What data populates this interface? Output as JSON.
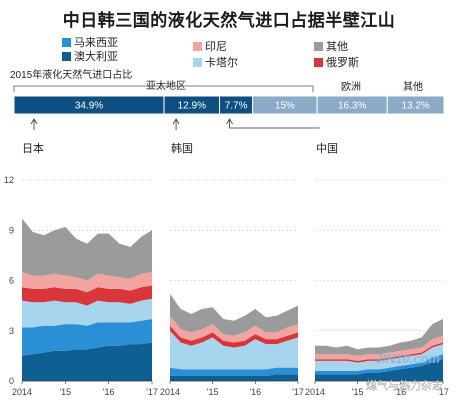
{
  "title": "中日韩三国的液化天然气进口占据半壁江山",
  "legend": [
    {
      "label": "马来西亚",
      "color": "#2b8fd6"
    },
    {
      "label": "印尼",
      "color": "#f2a5a0"
    },
    {
      "label": "其他",
      "color": "#9b9b9b"
    },
    {
      "label": "澳大利亚",
      "color": "#0d5f94"
    },
    {
      "label": "卡塔尔",
      "color": "#a7d5ee"
    },
    {
      "label": "俄罗斯",
      "color": "#d9363c"
    }
  ],
  "share_bar": {
    "caption": "2015年液化天然气进口占比",
    "group_labels": {
      "asia": "亚太地区",
      "europe": "欧洲",
      "other": "其他"
    },
    "segments": [
      {
        "label": "34.9%",
        "value": 34.9,
        "color": "#0d4f80"
      },
      {
        "label": "12.9%",
        "value": 12.9,
        "color": "#0d4f80"
      },
      {
        "label": "7.7%",
        "value": 7.7,
        "color": "#0d4f80"
      },
      {
        "label": "15%",
        "value": 15,
        "color": "#8aaac6"
      },
      {
        "label": "16.3%",
        "value": 16.3,
        "color": "#8aaac6"
      },
      {
        "label": "13.2%",
        "value": 13.2,
        "color": "#8aaac6"
      }
    ],
    "country_labels": [
      "日本",
      "韩国",
      "中国"
    ]
  },
  "chart_data": {
    "type": "area",
    "stacked": true,
    "ylim": [
      0,
      12
    ],
    "yticks": [
      "0",
      "3",
      "6",
      "9",
      "12"
    ],
    "x_tick_labels": [
      "2014",
      "'15",
      "'16",
      "'17"
    ],
    "x_start": 2014,
    "x_end": 2017,
    "stack_order": [
      "澳大利亚",
      "马来西亚",
      "卡塔尔",
      "俄罗斯",
      "印尼",
      "其他"
    ],
    "panels": [
      {
        "name": "日本",
        "x": [
          2014.0,
          2014.25,
          2014.5,
          2014.75,
          2015.0,
          2015.25,
          2015.5,
          2015.75,
          2016.0,
          2016.25,
          2016.5,
          2016.75,
          2017.0
        ],
        "series": [
          {
            "name": "澳大利亚",
            "values": [
              1.5,
              1.6,
              1.7,
              1.8,
              1.8,
              1.9,
              1.9,
              2.0,
              2.1,
              2.1,
              2.2,
              2.2,
              2.3
            ]
          },
          {
            "name": "马来西亚",
            "values": [
              1.7,
              1.6,
              1.6,
              1.5,
              1.6,
              1.5,
              1.4,
              1.5,
              1.4,
              1.4,
              1.3,
              1.4,
              1.4
            ]
          },
          {
            "name": "卡塔尔",
            "values": [
              1.6,
              1.5,
              1.4,
              1.5,
              1.3,
              1.3,
              1.2,
              1.3,
              1.2,
              1.2,
              1.1,
              1.2,
              1.2
            ]
          },
          {
            "name": "俄罗斯",
            "values": [
              0.8,
              0.8,
              0.8,
              0.8,
              0.8,
              0.8,
              0.8,
              0.8,
              0.8,
              0.8,
              0.8,
              0.8,
              0.8
            ]
          },
          {
            "name": "印尼",
            "values": [
              0.9,
              0.8,
              0.8,
              0.8,
              0.8,
              0.7,
              0.7,
              0.8,
              0.8,
              0.7,
              0.7,
              0.8,
              0.8
            ]
          },
          {
            "name": "其他",
            "values": [
              3.2,
              2.6,
              2.4,
              2.6,
              2.9,
              2.3,
              2.2,
              2.4,
              2.5,
              2.0,
              1.9,
              2.2,
              2.5
            ]
          }
        ]
      },
      {
        "name": "韩国",
        "x": [
          2014.0,
          2014.25,
          2014.5,
          2014.75,
          2015.0,
          2015.25,
          2015.5,
          2015.75,
          2016.0,
          2016.25,
          2016.5,
          2016.75,
          2017.0
        ],
        "series": [
          {
            "name": "澳大利亚",
            "values": [
              0.3,
              0.3,
              0.3,
              0.3,
              0.3,
              0.3,
              0.3,
              0.3,
              0.3,
              0.3,
              0.4,
              0.4,
              0.4
            ]
          },
          {
            "name": "马来西亚",
            "values": [
              0.5,
              0.4,
              0.4,
              0.4,
              0.4,
              0.4,
              0.4,
              0.4,
              0.4,
              0.4,
              0.4,
              0.4,
              0.4
            ]
          },
          {
            "name": "卡塔尔",
            "values": [
              2.2,
              1.6,
              1.4,
              1.6,
              1.9,
              1.4,
              1.3,
              1.4,
              1.8,
              1.5,
              1.4,
              1.6,
              1.8
            ]
          },
          {
            "name": "俄罗斯",
            "values": [
              0.3,
              0.3,
              0.3,
              0.3,
              0.3,
              0.3,
              0.3,
              0.3,
              0.3,
              0.3,
              0.3,
              0.3,
              0.3
            ]
          },
          {
            "name": "印尼",
            "values": [
              0.6,
              0.5,
              0.5,
              0.5,
              0.5,
              0.4,
              0.4,
              0.5,
              0.5,
              0.4,
              0.4,
              0.5,
              0.5
            ]
          },
          {
            "name": "其他",
            "values": [
              1.3,
              1.2,
              1.1,
              1.2,
              1.0,
              0.9,
              0.9,
              1.0,
              1.0,
              0.9,
              1.0,
              1.0,
              1.1
            ]
          }
        ]
      },
      {
        "name": "中国",
        "x": [
          2014.0,
          2014.25,
          2014.5,
          2014.75,
          2015.0,
          2015.25,
          2015.5,
          2015.75,
          2016.0,
          2016.25,
          2016.5,
          2016.75,
          2017.0
        ],
        "series": [
          {
            "name": "澳大利亚",
            "values": [
              0.4,
              0.4,
              0.4,
              0.4,
              0.4,
              0.5,
              0.5,
              0.6,
              0.7,
              0.8,
              0.9,
              1.1,
              1.3
            ]
          },
          {
            "name": "马来西亚",
            "values": [
              0.2,
              0.2,
              0.2,
              0.2,
              0.2,
              0.2,
              0.2,
              0.2,
              0.2,
              0.2,
              0.2,
              0.3,
              0.3
            ]
          },
          {
            "name": "卡塔尔",
            "values": [
              0.6,
              0.6,
              0.6,
              0.6,
              0.5,
              0.5,
              0.5,
              0.5,
              0.5,
              0.5,
              0.5,
              0.6,
              0.6
            ]
          },
          {
            "name": "俄罗斯",
            "values": [
              0.1,
              0.1,
              0.1,
              0.1,
              0.1,
              0.1,
              0.1,
              0.1,
              0.1,
              0.1,
              0.1,
              0.1,
              0.1
            ]
          },
          {
            "name": "印尼",
            "values": [
              0.3,
              0.3,
              0.3,
              0.3,
              0.3,
              0.3,
              0.3,
              0.3,
              0.3,
              0.3,
              0.3,
              0.4,
              0.4
            ]
          },
          {
            "name": "其他",
            "values": [
              0.5,
              0.5,
              0.4,
              0.5,
              0.4,
              0.4,
              0.4,
              0.4,
              0.5,
              0.5,
              0.6,
              0.9,
              1.0
            ]
          }
        ]
      }
    ]
  },
  "watermarks": [
    "JIN10.com",
    "煤气与热力杂志"
  ]
}
